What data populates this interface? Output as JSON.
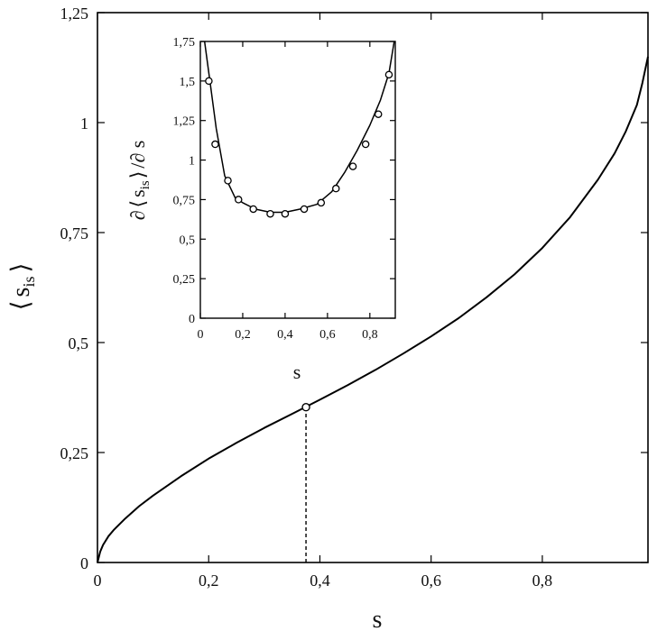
{
  "chart_data": [
    {
      "type": "line",
      "role": "main",
      "xlabel": "s",
      "ylabel_parts": {
        "open": "⟨",
        "base": "s",
        "sub": "is",
        "close": "⟩"
      },
      "xlim": [
        0,
        0.99
      ],
      "ylim": [
        0,
        1.25
      ],
      "xticks": [
        0,
        0.2,
        0.4,
        0.6,
        0.8
      ],
      "xtick_labels": [
        "0",
        "0,2",
        "0,4",
        "0,6",
        "0,8"
      ],
      "yticks": [
        0,
        0.25,
        0.5,
        0.75,
        1,
        1.25
      ],
      "ytick_labels": [
        "0",
        "0,25",
        "0,5",
        "0,75",
        "1",
        "1,25"
      ],
      "grid": false,
      "series": [
        {
          "x": [
            0,
            0.005,
            0.01,
            0.02,
            0.03,
            0.05,
            0.075,
            0.1,
            0.15,
            0.2,
            0.25,
            0.3,
            0.35,
            0.4,
            0.45,
            0.5,
            0.55,
            0.6,
            0.65,
            0.7,
            0.75,
            0.8,
            0.85,
            0.9,
            0.93,
            0.95,
            0.97,
            0.98,
            0.99
          ],
          "y": [
            0,
            0.025,
            0.04,
            0.06,
            0.075,
            0.1,
            0.128,
            0.152,
            0.196,
            0.236,
            0.272,
            0.306,
            0.338,
            0.37,
            0.403,
            0.438,
            0.475,
            0.514,
            0.556,
            0.603,
            0.655,
            0.715,
            0.785,
            0.87,
            0.93,
            0.98,
            1.04,
            1.09,
            1.15
          ]
        }
      ],
      "marker_point": {
        "x": 0.375,
        "y": 0.353
      },
      "dashed_dropline": {
        "x": 0.375,
        "y_from": 0,
        "y_to": 0.353
      }
    },
    {
      "type": "line",
      "role": "inset",
      "xlabel": "s",
      "ylabel_parts": {
        "pre": "∂",
        "open": "⟨",
        "base": "s",
        "sub": "is",
        "close": "⟩",
        "post": "/∂ s"
      },
      "xlim": [
        0,
        0.92
      ],
      "ylim": [
        0,
        1.75
      ],
      "xticks": [
        0,
        0.2,
        0.4,
        0.6,
        0.8
      ],
      "xtick_labels": [
        "0",
        "0,2",
        "0,4",
        "0,6",
        "0,8"
      ],
      "yticks": [
        0,
        0.25,
        0.5,
        0.75,
        1,
        1.25,
        1.5,
        1.75
      ],
      "ytick_labels": [
        "0",
        "0,25",
        "0,5",
        "0,75",
        "1",
        "1,25",
        "1,5",
        "1,75"
      ],
      "grid": false,
      "series": [
        {
          "x": [
            0.02,
            0.045,
            0.075,
            0.115,
            0.165,
            0.2,
            0.26,
            0.33,
            0.4,
            0.47,
            0.55,
            0.62,
            0.68,
            0.74,
            0.8,
            0.85,
            0.89,
            0.915
          ],
          "y": [
            1.75,
            1.5,
            1.2,
            0.9,
            0.76,
            0.73,
            0.69,
            0.67,
            0.67,
            0.69,
            0.72,
            0.8,
            0.92,
            1.06,
            1.22,
            1.38,
            1.55,
            1.75
          ]
        }
      ],
      "markers": {
        "x": [
          0.04,
          0.07,
          0.13,
          0.18,
          0.25,
          0.33,
          0.4,
          0.49,
          0.57,
          0.64,
          0.72,
          0.78,
          0.84,
          0.89
        ],
        "y": [
          1.5,
          1.1,
          0.87,
          0.75,
          0.69,
          0.66,
          0.66,
          0.69,
          0.73,
          0.82,
          0.96,
          1.1,
          1.29,
          1.54
        ]
      }
    }
  ]
}
